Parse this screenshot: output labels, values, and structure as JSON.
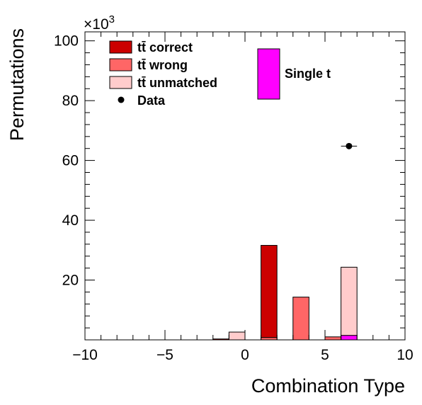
{
  "chart_data": {
    "type": "bar",
    "xlabel": "Combination Type",
    "ylabel": "Permutations",
    "multiplier_label": "×10",
    "multiplier_exp": "3",
    "xlim": [
      -10,
      10
    ],
    "ylim": [
      0,
      103
    ],
    "x_ticks": [
      -10,
      -5,
      0,
      5,
      10
    ],
    "x_tick_labels": [
      "−10",
      "−5",
      "0",
      "5",
      "10"
    ],
    "y_ticks": [
      20,
      40,
      60,
      80,
      100
    ],
    "y_tick_labels": [
      "20",
      "40",
      "60",
      "80",
      "100"
    ],
    "bin_edges": [
      -2,
      -1,
      0,
      1,
      2,
      3,
      4,
      5,
      6,
      7,
      8
    ],
    "series": [
      {
        "name": "Single t",
        "color": "#ff00ff",
        "values": [
          0,
          0,
          0,
          0,
          0,
          0,
          0,
          0,
          1.5,
          0
        ]
      },
      {
        "name": "tt̄ unmatched",
        "color": "#ffcccc",
        "values": [
          0,
          2.6,
          0,
          0,
          0,
          0,
          0,
          0,
          22.8,
          0
        ]
      },
      {
        "name": "tt̄ wrong",
        "color": "#ff6666",
        "values": [
          0,
          0,
          0,
          0.8,
          0,
          14.3,
          0,
          1.0,
          0,
          0
        ]
      },
      {
        "name": "tt̄ correct",
        "color": "#cc0000",
        "values": [
          0.3,
          0,
          0,
          30.8,
          0,
          0,
          0,
          0,
          0,
          0
        ]
      }
    ],
    "data_points": [
      {
        "name": "Data",
        "x": 6.5,
        "y": 64.8,
        "xerr": 0.5
      }
    ],
    "legend": {
      "placement": "top-left",
      "entries": [
        {
          "label": "tt̄ correct",
          "color": "#cc0000",
          "kind": "box"
        },
        {
          "label": "tt̄ wrong",
          "color": "#ff6666",
          "kind": "box"
        },
        {
          "label": "tt̄ unmatched",
          "color": "#ffcccc",
          "kind": "box"
        },
        {
          "label": "Data",
          "color": "#000000",
          "kind": "marker"
        }
      ]
    },
    "single_t_legend": {
      "label": "Single t",
      "color": "#ff00ff",
      "placement": "top-center"
    },
    "grid": false
  }
}
